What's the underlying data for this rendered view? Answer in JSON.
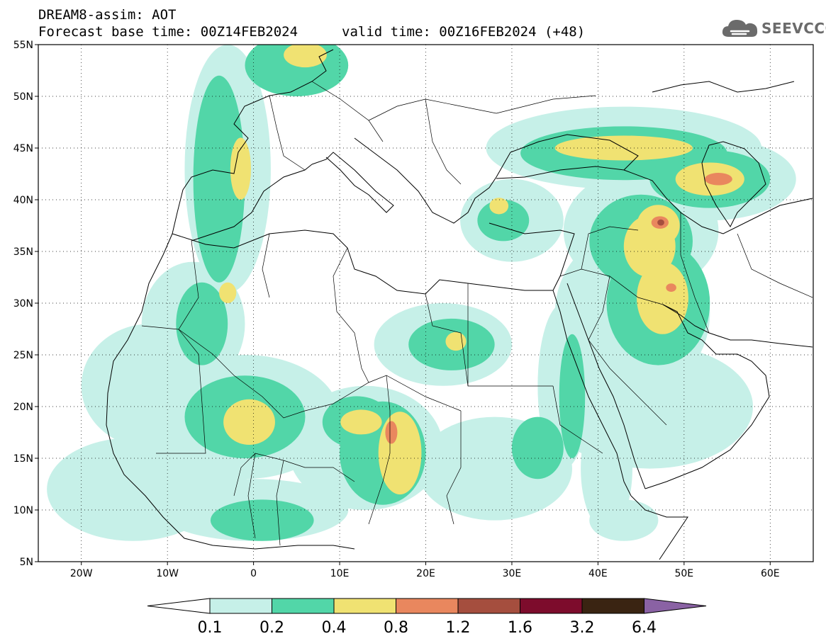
{
  "header": {
    "title": "DREAM8-assim: AOT",
    "base_time": "Forecast base time: 00Z14FEB2024",
    "valid_time": "valid time: 00Z16FEB2024 (+48)"
  },
  "logo": {
    "text": "SEEVCCC",
    "icon": "cloud-icon",
    "color": "#6b6b6b"
  },
  "map": {
    "lon_range": [
      -25,
      65
    ],
    "lat_range": [
      5,
      55
    ],
    "lat_ticks": [
      {
        "v": 55,
        "label": "55N"
      },
      {
        "v": 50,
        "label": "50N"
      },
      {
        "v": 45,
        "label": "45N"
      },
      {
        "v": 40,
        "label": "40N"
      },
      {
        "v": 35,
        "label": "35N"
      },
      {
        "v": 30,
        "label": "30N"
      },
      {
        "v": 25,
        "label": "25N"
      },
      {
        "v": 20,
        "label": "20N"
      },
      {
        "v": 15,
        "label": "15N"
      },
      {
        "v": 10,
        "label": "10N"
      },
      {
        "v": 5,
        "label": "5N"
      }
    ],
    "lon_ticks": [
      {
        "v": -20,
        "label": "20W"
      },
      {
        "v": -10,
        "label": "10W"
      },
      {
        "v": 0,
        "label": "0"
      },
      {
        "v": 10,
        "label": "10E"
      },
      {
        "v": 20,
        "label": "20E"
      },
      {
        "v": 30,
        "label": "30E"
      },
      {
        "v": 40,
        "label": "40E"
      },
      {
        "v": 50,
        "label": "50E"
      },
      {
        "v": 60,
        "label": "60E"
      }
    ],
    "gridlines": "dotted",
    "field": "AOT",
    "blobs": [
      {
        "lon": -3,
        "lat": 43,
        "rlon": 5,
        "rlat": 12,
        "level": 0
      },
      {
        "lon": -4,
        "lat": 42,
        "rlon": 3,
        "rlat": 10,
        "level": 1
      },
      {
        "lon": -1.5,
        "lat": 43,
        "rlon": 1.2,
        "rlat": 3,
        "level": 2
      },
      {
        "lon": 5,
        "lat": 53,
        "rlon": 6,
        "rlat": 3,
        "level": 1
      },
      {
        "lon": 6,
        "lat": 54,
        "rlon": 2.5,
        "rlat": 1.2,
        "level": 2
      },
      {
        "lon": -7,
        "lat": 28,
        "rlon": 6,
        "rlat": 6,
        "level": 0
      },
      {
        "lon": -6,
        "lat": 28,
        "rlon": 3,
        "rlat": 4,
        "level": 1
      },
      {
        "lon": -3,
        "lat": 31,
        "rlon": 1,
        "rlat": 1,
        "level": 2
      },
      {
        "lon": -12,
        "lat": 22,
        "rlon": 8,
        "rlat": 6,
        "level": 0
      },
      {
        "lon": -1,
        "lat": 19,
        "rlon": 11,
        "rlat": 6,
        "level": 0
      },
      {
        "lon": -1,
        "lat": 19,
        "rlon": 7,
        "rlat": 4,
        "level": 1
      },
      {
        "lon": -0.5,
        "lat": 18.5,
        "rlon": 3,
        "rlat": 2.2,
        "level": 2
      },
      {
        "lon": -6,
        "lat": 15,
        "rlon": 7,
        "rlat": 3,
        "level": 0
      },
      {
        "lon": -14,
        "lat": 12,
        "rlon": 10,
        "rlat": 5,
        "level": 0
      },
      {
        "lon": 0,
        "lat": 10,
        "rlon": 11,
        "rlat": 3,
        "level": 0
      },
      {
        "lon": 1,
        "lat": 9,
        "rlon": 6,
        "rlat": 2,
        "level": 1
      },
      {
        "lon": 13,
        "lat": 16,
        "rlon": 9,
        "rlat": 6,
        "level": 0
      },
      {
        "lon": 15,
        "lat": 15.5,
        "rlon": 5,
        "rlat": 5,
        "level": 1
      },
      {
        "lon": 17,
        "lat": 15.5,
        "rlon": 2.5,
        "rlat": 4,
        "level": 2
      },
      {
        "lon": 16,
        "lat": 17.5,
        "rlon": 0.7,
        "rlat": 1.1,
        "level": 3
      },
      {
        "lon": 12.5,
        "lat": 18.5,
        "rlon": 2.4,
        "rlat": 1.2,
        "level": 2
      },
      {
        "lon": 12,
        "lat": 18.5,
        "rlon": 4,
        "rlat": 2.5,
        "level": 1
      },
      {
        "lon": 22,
        "lat": 26,
        "rlon": 8,
        "rlat": 4,
        "level": 0
      },
      {
        "lon": 23,
        "lat": 26,
        "rlon": 5,
        "rlat": 2.5,
        "level": 1
      },
      {
        "lon": 23.5,
        "lat": 26.3,
        "rlon": 1.2,
        "rlat": 0.9,
        "level": 2
      },
      {
        "lon": 28,
        "lat": 14,
        "rlon": 9,
        "rlat": 5,
        "level": 0
      },
      {
        "lon": 33,
        "lat": 16,
        "rlon": 3,
        "rlat": 3,
        "level": 1
      },
      {
        "lon": 36,
        "lat": 22,
        "rlon": 3,
        "rlat": 8,
        "level": 0
      },
      {
        "lon": 37,
        "lat": 21,
        "rlon": 1.5,
        "rlat": 6,
        "level": 1
      },
      {
        "lon": 41,
        "lat": 14,
        "rlon": 3,
        "rlat": 6,
        "level": 0
      },
      {
        "lon": 46,
        "lat": 20,
        "rlon": 12,
        "rlat": 6,
        "level": 0
      },
      {
        "lon": 44,
        "lat": 29,
        "rlon": 9,
        "rlat": 8,
        "level": 0
      },
      {
        "lon": 47,
        "lat": 30,
        "rlon": 6,
        "rlat": 6,
        "level": 1
      },
      {
        "lon": 47.5,
        "lat": 30.5,
        "rlon": 3,
        "rlat": 3.5,
        "level": 2
      },
      {
        "lon": 48.5,
        "lat": 31.5,
        "rlon": 0.6,
        "rlat": 0.4,
        "level": 3
      },
      {
        "lon": 46,
        "lat": 35.5,
        "rlon": 3,
        "rlat": 3,
        "level": 2
      },
      {
        "lon": 47,
        "lat": 37.5,
        "rlon": 2.5,
        "rlat": 2,
        "level": 2
      },
      {
        "lon": 47.2,
        "lat": 37.8,
        "rlon": 1,
        "rlat": 0.6,
        "level": 3
      },
      {
        "lon": 47.3,
        "lat": 37.8,
        "rlon": 0.4,
        "rlat": 0.3,
        "level": 4
      },
      {
        "lon": 45,
        "lat": 37,
        "rlon": 9,
        "rlat": 6,
        "level": 0
      },
      {
        "lon": 45,
        "lat": 36,
        "rlon": 6,
        "rlat": 4.5,
        "level": 1
      },
      {
        "lon": 43,
        "lat": 45,
        "rlon": 16,
        "rlat": 4,
        "level": 0
      },
      {
        "lon": 43,
        "lat": 44.5,
        "rlon": 12,
        "rlat": 2.6,
        "level": 1
      },
      {
        "lon": 43,
        "lat": 45,
        "rlon": 8,
        "rlat": 1.2,
        "level": 2
      },
      {
        "lon": 53,
        "lat": 42,
        "rlon": 10,
        "rlat": 4,
        "level": 0
      },
      {
        "lon": 53,
        "lat": 42,
        "rlon": 7,
        "rlat": 2.8,
        "level": 1
      },
      {
        "lon": 53,
        "lat": 42,
        "rlon": 4,
        "rlat": 1.6,
        "level": 2
      },
      {
        "lon": 54,
        "lat": 42,
        "rlon": 1.6,
        "rlat": 0.6,
        "level": 3
      },
      {
        "lon": 30,
        "lat": 38,
        "rlon": 6,
        "rlat": 4,
        "level": 0
      },
      {
        "lon": 29,
        "lat": 38,
        "rlon": 3,
        "rlat": 2,
        "level": 1
      },
      {
        "lon": 28.5,
        "lat": 39.4,
        "rlon": 1.1,
        "rlat": 0.8,
        "level": 2
      },
      {
        "lon": 43,
        "lat": 9,
        "rlon": 4,
        "rlat": 2,
        "level": 0
      }
    ]
  },
  "colorbar": {
    "levels": [
      "0.1",
      "0.2",
      "0.4",
      "0.8",
      "1.2",
      "1.6",
      "3.2",
      "6.4"
    ],
    "colors": [
      "#c6f0e8",
      "#52d6a8",
      "#f0e272",
      "#e9875e",
      "#a54e3e",
      "#7d0c2c",
      "#3a2412",
      "#8a62a4"
    ],
    "under_color": "#ffffff"
  }
}
